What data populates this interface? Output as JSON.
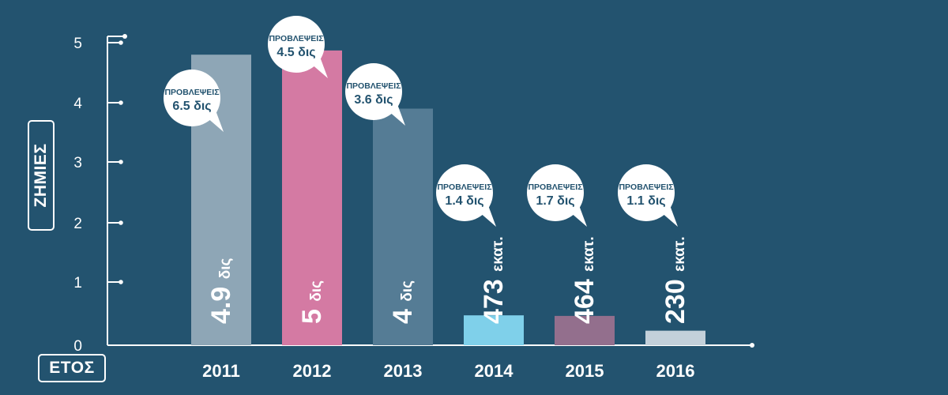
{
  "colors": {
    "background": "#23536f",
    "bubble_text": "#23536f"
  },
  "chart_data": {
    "type": "bar",
    "xlabel": "ΕΤΟΣ",
    "ylabel": "ΖΗΜΙΕΣ",
    "ylim": [
      0,
      5
    ],
    "yticks": [
      "0",
      "1",
      "2",
      "3",
      "4",
      "5"
    ],
    "grid": false,
    "categories": [
      "2011",
      "2012",
      "2013",
      "2014",
      "2015",
      "2016"
    ],
    "values": [
      4.8,
      4.87,
      3.9,
      0.473,
      0.464,
      0.23
    ],
    "bar_colors": [
      "#8ea6b6",
      "#d47aa3",
      "#557c95",
      "#7fd0ea",
      "#936f8d",
      "#c3d0da"
    ],
    "value_labels": [
      {
        "number": "4.9",
        "unit": "δις"
      },
      {
        "number": "5",
        "unit": "δις"
      },
      {
        "number": "4",
        "unit": "δις"
      },
      {
        "number": "473",
        "unit": "εκατ."
      },
      {
        "number": "464",
        "unit": "εκατ."
      },
      {
        "number": "230",
        "unit": "εκατ."
      }
    ],
    "forecast_bubbles": [
      {
        "title": "ΠΡΟΒΛΕΨΕΙΣ",
        "value": "6.5 δις"
      },
      {
        "title": "ΠΡΟΒΛΕΨΕΙΣ",
        "value": "4.5 δις"
      },
      {
        "title": "ΠΡΟΒΛΕΨΕΙΣ",
        "value": "3.6 δις"
      },
      {
        "title": "ΠΡΟΒΛΕΨΕΙΣ",
        "value": "1.4 δις"
      },
      {
        "title": "ΠΡΟΒΛΕΨΕΙΣ",
        "value": "1.7 δις"
      },
      {
        "title": "ΠΡΟΒΛΕΨΕΙΣ",
        "value": "1.1 δις"
      }
    ]
  }
}
